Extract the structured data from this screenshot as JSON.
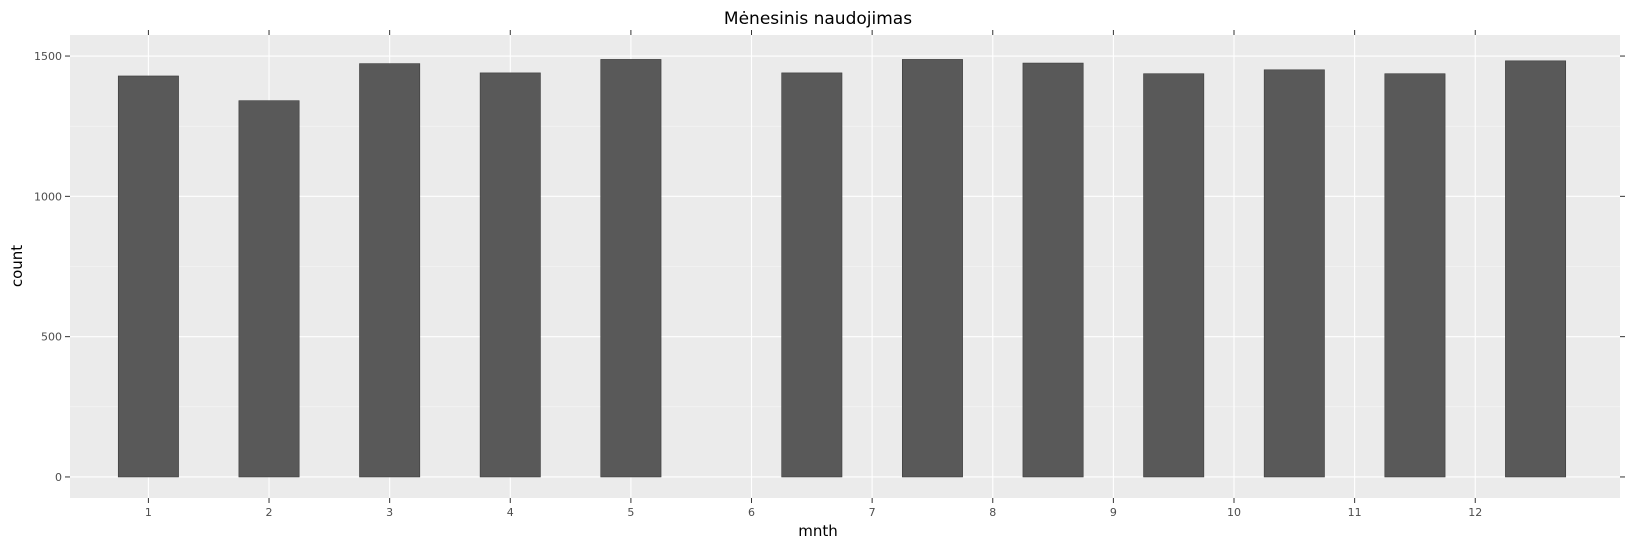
{
  "chart_data": {
    "type": "bar",
    "title": "Mėnesinis naudojimas",
    "xlabel": "mnth",
    "ylabel": "count",
    "categories": [
      "1",
      "2",
      "3",
      "4",
      "5",
      "6",
      "7",
      "8",
      "9",
      "10",
      "11",
      "12"
    ],
    "values": [
      1429,
      1341,
      1473,
      1440,
      1488,
      1440,
      1488,
      1475,
      1437,
      1451,
      1437,
      1483
    ],
    "x_positions": [
      1,
      2,
      3,
      4,
      5,
      6.5,
      7.5,
      8.5,
      9.5,
      10.5,
      11.5,
      12.5
    ],
    "x_ticks": [
      1,
      2,
      3,
      4,
      5,
      6,
      7,
      8,
      9,
      10,
      11,
      12
    ],
    "x_tick_labels": [
      "1",
      "2",
      "3",
      "4",
      "5",
      "6",
      "7",
      "8",
      "9",
      "10",
      "11",
      "12"
    ],
    "y_ticks": [
      0,
      500,
      1000,
      1500
    ],
    "y_tick_labels": [
      "0",
      "500",
      "1000",
      "1500"
    ],
    "ylim": [
      -75,
      1575
    ],
    "xlim": [
      0.35,
      13.2
    ],
    "grid": true,
    "legend": "none",
    "colors": {
      "bar": "#595959",
      "panel": "#ebebeb",
      "grid": "#ffffff"
    }
  }
}
